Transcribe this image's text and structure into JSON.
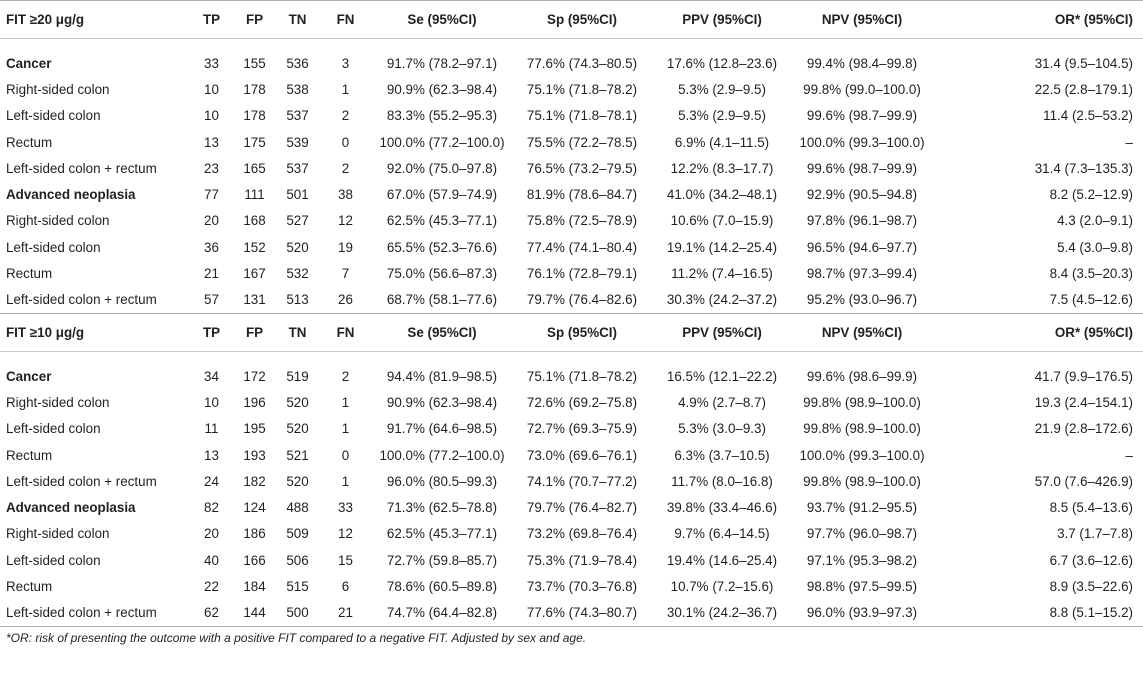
{
  "columns": [
    "TP",
    "FP",
    "TN",
    "FN",
    "Se (95%CI)",
    "Sp (95%CI)",
    "PPV (95%CI)",
    "NPV (95%CI)",
    "OR* (95%CI)"
  ],
  "sections": [
    {
      "title": "FIT ≥20 μg/g",
      "rows": [
        {
          "label": "Cancer",
          "bold": true,
          "cells": [
            "33",
            "155",
            "536",
            "3",
            "91.7% (78.2–97.1)",
            "77.6% (74.3–80.5)",
            "17.6% (12.8–23.6)",
            "99.4% (98.4–99.8)",
            "31.4 (9.5–104.5)"
          ]
        },
        {
          "label": "Right-sided colon",
          "bold": false,
          "cells": [
            "10",
            "178",
            "538",
            "1",
            "90.9% (62.3–98.4)",
            "75.1% (71.8–78.2)",
            "5.3% (2.9–9.5)",
            "99.8% (99.0–100.0)",
            "22.5 (2.8–179.1)"
          ]
        },
        {
          "label": "Left-sided colon",
          "bold": false,
          "cells": [
            "10",
            "178",
            "537",
            "2",
            "83.3% (55.2–95.3)",
            "75.1% (71.8–78.1)",
            "5.3% (2.9–9.5)",
            "99.6% (98.7–99.9)",
            "11.4 (2.5–53.2)"
          ]
        },
        {
          "label": "Rectum",
          "bold": false,
          "cells": [
            "13",
            "175",
            "539",
            "0",
            "100.0% (77.2–100.0)",
            "75.5% (72.2–78.5)",
            "6.9% (4.1–11.5)",
            "100.0% (99.3–100.0)",
            "–"
          ]
        },
        {
          "label": "Left-sided colon + rectum",
          "bold": false,
          "cells": [
            "23",
            "165",
            "537",
            "2",
            "92.0% (75.0–97.8)",
            "76.5% (73.2–79.5)",
            "12.2% (8.3–17.7)",
            "99.6% (98.7–99.9)",
            "31.4 (7.3–135.3)"
          ]
        },
        {
          "label": "Advanced neoplasia",
          "bold": true,
          "cells": [
            "77",
            "111",
            "501",
            "38",
            "67.0% (57.9–74.9)",
            "81.9% (78.6–84.7)",
            "41.0% (34.2–48.1)",
            "92.9% (90.5–94.8)",
            "8.2 (5.2–12.9)"
          ]
        },
        {
          "label": "Right-sided colon",
          "bold": false,
          "cells": [
            "20",
            "168",
            "527",
            "12",
            "62.5% (45.3–77.1)",
            "75.8% (72.5–78.9)",
            "10.6% (7.0–15.9)",
            "97.8% (96.1–98.7)",
            "4.3 (2.0–9.1)"
          ]
        },
        {
          "label": "Left-sided colon",
          "bold": false,
          "cells": [
            "36",
            "152",
            "520",
            "19",
            "65.5% (52.3–76.6)",
            "77.4% (74.1–80.4)",
            "19.1% (14.2–25.4)",
            "96.5% (94.6–97.7)",
            "5.4 (3.0–9.8)"
          ]
        },
        {
          "label": "Rectum",
          "bold": false,
          "cells": [
            "21",
            "167",
            "532",
            "7",
            "75.0% (56.6–87.3)",
            "76.1% (72.8–79.1)",
            "11.2% (7.4–16.5)",
            "98.7% (97.3–99.4)",
            "8.4 (3.5–20.3)"
          ]
        },
        {
          "label": "Left-sided colon + rectum",
          "bold": false,
          "cells": [
            "57",
            "131",
            "513",
            "26",
            "68.7% (58.1–77.6)",
            "79.7% (76.4–82.6)",
            "30.3% (24.2–37.2)",
            "95.2% (93.0–96.7)",
            "7.5 (4.5–12.6)"
          ]
        }
      ]
    },
    {
      "title": "FIT ≥10 μg/g",
      "rows": [
        {
          "label": "Cancer",
          "bold": true,
          "cells": [
            "34",
            "172",
            "519",
            "2",
            "94.4% (81.9–98.5)",
            "75.1% (71.8–78.2)",
            "16.5% (12.1–22.2)",
            "99.6% (98.6–99.9)",
            "41.7 (9.9–176.5)"
          ]
        },
        {
          "label": "Right-sided colon",
          "bold": false,
          "cells": [
            "10",
            "196",
            "520",
            "1",
            "90.9% (62.3–98.4)",
            "72.6% (69.2–75.8)",
            "4.9% (2.7–8.7)",
            "99.8% (98.9–100.0)",
            "19.3 (2.4–154.1)"
          ]
        },
        {
          "label": "Left-sided colon",
          "bold": false,
          "cells": [
            "11",
            "195",
            "520",
            "1",
            "91.7% (64.6–98.5)",
            "72.7% (69.3–75.9)",
            "5.3% (3.0–9.3)",
            "99.8% (98.9–100.0)",
            "21.9 (2.8–172.6)"
          ]
        },
        {
          "label": "Rectum",
          "bold": false,
          "cells": [
            "13",
            "193",
            "521",
            "0",
            "100.0% (77.2–100.0)",
            "73.0% (69.6–76.1)",
            "6.3% (3.7–10.5)",
            "100.0% (99.3–100.0)",
            "–"
          ]
        },
        {
          "label": "Left-sided colon + rectum",
          "bold": false,
          "cells": [
            "24",
            "182",
            "520",
            "1",
            "96.0% (80.5–99.3)",
            "74.1% (70.7–77.2)",
            "11.7% (8.0–16.8)",
            "99.8% (98.9–100.0)",
            "57.0 (7.6–426.9)"
          ]
        },
        {
          "label": "Advanced neoplasia",
          "bold": true,
          "cells": [
            "82",
            "124",
            "488",
            "33",
            "71.3% (62.5–78.8)",
            "79.7% (76.4–82.7)",
            "39.8% (33.4–46.6)",
            "93.7% (91.2–95.5)",
            "8.5 (5.4–13.6)"
          ]
        },
        {
          "label": "Right-sided colon",
          "bold": false,
          "cells": [
            "20",
            "186",
            "509",
            "12",
            "62.5% (45.3–77.1)",
            "73.2% (69.8–76.4)",
            "9.7% (6.4–14.5)",
            "97.7% (96.0–98.7)",
            "3.7 (1.7–7.8)"
          ]
        },
        {
          "label": "Left-sided colon",
          "bold": false,
          "cells": [
            "40",
            "166",
            "506",
            "15",
            "72.7% (59.8–85.7)",
            "75.3% (71.9–78.4)",
            "19.4% (14.6–25.4)",
            "97.1% (95.3–98.2)",
            "6.7 (3.6–12.6)"
          ]
        },
        {
          "label": "Rectum",
          "bold": false,
          "cells": [
            "22",
            "184",
            "515",
            "6",
            "78.6% (60.5–89.8)",
            "73.7% (70.3–76.8)",
            "10.7% (7.2–15.6)",
            "98.8% (97.5–99.5)",
            "8.9 (3.5–22.6)"
          ]
        },
        {
          "label": "Left-sided colon + rectum",
          "bold": false,
          "cells": [
            "62",
            "144",
            "500",
            "21",
            "74.7% (64.4–82.8)",
            "77.6% (74.3–80.7)",
            "30.1% (24.2–36.7)",
            "96.0% (93.9–97.3)",
            "8.8 (5.1–15.2)"
          ]
        }
      ]
    }
  ],
  "footnote": "*OR: risk of presenting the outcome with a positive FIT compared to a negative FIT. Adjusted by sex and age."
}
